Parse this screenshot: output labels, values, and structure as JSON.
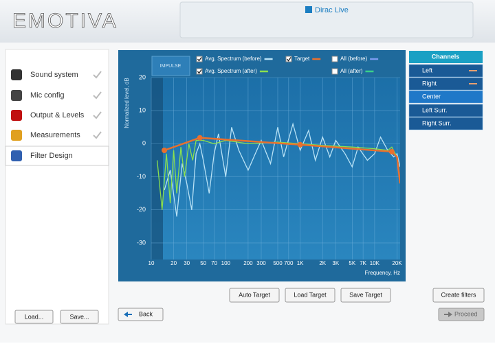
{
  "header": {
    "logo": "EMOTIVA",
    "app": "Dirac Live"
  },
  "sidebar": {
    "steps": [
      "Sound system",
      "Mic config",
      "Output & Levels",
      "Measurements",
      "Filter Design"
    ],
    "buttons": [
      "Load...",
      "Save..."
    ]
  },
  "impulse_button": "IMPULSE",
  "chart_data": {
    "type": "line",
    "xlabel": "Frequency, Hz",
    "ylabel": "Normalized level, dB",
    "xscale": "log",
    "xlim": [
      10,
      22000
    ],
    "ylim": [
      -35,
      20
    ],
    "xticks": [
      10,
      20,
      30,
      50,
      70,
      100,
      200,
      300,
      500,
      700,
      {
        "value": 1000,
        "label": "1K"
      },
      {
        "value": 2000,
        "label": "2K"
      },
      {
        "value": 3000,
        "label": "3K"
      },
      {
        "value": 5000,
        "label": "5K"
      },
      {
        "value": 7000,
        "label": "7K"
      },
      {
        "value": 10000,
        "label": "10K"
      },
      {
        "value": 20000,
        "label": "20K"
      }
    ],
    "yticks": [
      20,
      10,
      0,
      -10,
      -20,
      -30
    ],
    "grid": true,
    "series": [
      {
        "name": "Avg. Spectrum (before)",
        "color": "#b8e2f6",
        "checked": true,
        "x": [
          15,
          18,
          22,
          26,
          30,
          35,
          40,
          45,
          50,
          60,
          70,
          80,
          100,
          120,
          150,
          200,
          250,
          300,
          400,
          500,
          600,
          800,
          1000,
          1300,
          1600,
          2000,
          2500,
          3000,
          4000,
          5000,
          6000,
          8000,
          10000,
          12000,
          15000,
          18000,
          20000,
          22000
        ],
        "values": [
          -14,
          -8,
          -22,
          -6,
          -12,
          -20,
          -3,
          0,
          -5,
          -15,
          -3,
          3,
          -10,
          5,
          -2,
          -8,
          -3,
          1,
          -6,
          5,
          -4,
          6,
          -2,
          4,
          -5,
          2,
          -4,
          1,
          -3,
          -7,
          -1,
          -5,
          -3,
          2,
          -2,
          -4,
          -3,
          -7
        ]
      },
      {
        "name": "Avg. Spectrum (after)",
        "color": "#8be04e",
        "checked": true,
        "x": [
          12,
          14,
          16,
          18,
          20,
          22,
          25,
          28,
          32,
          36,
          40,
          50,
          70,
          100,
          200,
          500,
          1000,
          2000,
          5000,
          10000,
          15000,
          17000,
          20000,
          22000
        ],
        "values": [
          -5,
          -20,
          -3,
          -18,
          -2,
          -15,
          -1,
          -10,
          0,
          -5,
          1,
          1,
          0,
          1,
          0,
          0.5,
          0,
          -0.5,
          -1,
          -1.5,
          -2,
          -1,
          -4,
          -11
        ]
      },
      {
        "name": "Target",
        "color": "#e8702e",
        "checked": true,
        "x": [
          15,
          45,
          1000,
          17000,
          20000,
          22000
        ],
        "values": [
          -2,
          1.8,
          -0.3,
          -2.4,
          -4,
          -12
        ]
      }
    ],
    "extra_legend": [
      {
        "name": "All (before)",
        "color": "#7a9cf0",
        "checked": false
      },
      {
        "name": "All (after)",
        "color": "#3ad08a",
        "checked": false
      }
    ]
  },
  "target_buttons": [
    "Auto Target",
    "Load Target",
    "Save Target"
  ],
  "channels": {
    "title": "Channels",
    "items": [
      "Left",
      "Right",
      "Center",
      "Left Surr.",
      "Right Surr."
    ]
  },
  "buttons": {
    "create": "Create filters",
    "back": "Back",
    "proceed": "Proceed"
  }
}
